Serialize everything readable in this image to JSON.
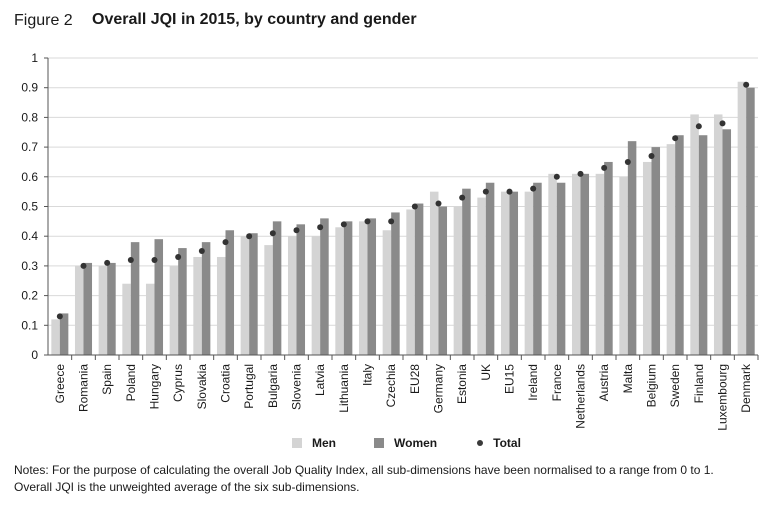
{
  "figure_label": "Figure 2",
  "figure_title": "Overall JQI in 2015, by country and gender",
  "notes": [
    "Notes: For the purpose of calculating the overall Job Quality Index, all sub-dimensions have been normalised to a range from 0 to 1.",
    "Overall JQI is the unweighted average of the six sub-dimensions."
  ],
  "colors": {
    "men": "#d4d4d4",
    "women": "#8a8a8a",
    "total": "#333333",
    "grid": "#d9d9d9",
    "axis": "#555555"
  },
  "chart_data": {
    "type": "bar",
    "title": "Overall JQI in 2015, by country and gender",
    "xlabel": "",
    "ylabel": "",
    "ylim": [
      0,
      1
    ],
    "yticks": [
      "0",
      "0.1",
      "0.2",
      "0.3",
      "0.4",
      "0.5",
      "0.6",
      "0.7",
      "0.8",
      "0.9",
      "1"
    ],
    "grid": true,
    "legend_position": "bottom",
    "categories": [
      "Greece",
      "Romania",
      "Spain",
      "Poland",
      "Hungary",
      "Cyprus",
      "Slovakia",
      "Croatia",
      "Portugal",
      "Bulgaria",
      "Slovenia",
      "Latvia",
      "Lithuania",
      "Italy",
      "Czechia",
      "EU28",
      "Germany",
      "Estonia",
      "UK",
      "EU15",
      "Ireland",
      "France",
      "Netherlands",
      "Austria",
      "Malta",
      "Belgium",
      "Sweden",
      "Finland",
      "Luxembourg",
      "Denmark"
    ],
    "series": [
      {
        "name": "Men",
        "values": [
          0.12,
          0.3,
          0.3,
          0.24,
          0.24,
          0.3,
          0.33,
          0.33,
          0.4,
          0.37,
          0.4,
          0.4,
          0.43,
          0.45,
          0.42,
          0.49,
          0.55,
          0.5,
          0.53,
          0.55,
          0.55,
          0.61,
          0.61,
          0.61,
          0.6,
          0.65,
          0.71,
          0.81,
          0.81,
          0.92
        ]
      },
      {
        "name": "Women",
        "values": [
          0.14,
          0.31,
          0.31,
          0.38,
          0.39,
          0.36,
          0.38,
          0.42,
          0.41,
          0.45,
          0.44,
          0.46,
          0.45,
          0.46,
          0.48,
          0.51,
          0.5,
          0.56,
          0.58,
          0.55,
          0.58,
          0.58,
          0.61,
          0.65,
          0.72,
          0.7,
          0.74,
          0.74,
          0.76,
          0.9
        ]
      },
      {
        "name": "Total",
        "values": [
          0.13,
          0.3,
          0.31,
          0.32,
          0.32,
          0.33,
          0.35,
          0.38,
          0.4,
          0.41,
          0.42,
          0.43,
          0.44,
          0.45,
          0.45,
          0.5,
          0.51,
          0.53,
          0.55,
          0.55,
          0.56,
          0.6,
          0.61,
          0.63,
          0.65,
          0.67,
          0.73,
          0.77,
          0.78,
          0.91
        ]
      }
    ]
  }
}
